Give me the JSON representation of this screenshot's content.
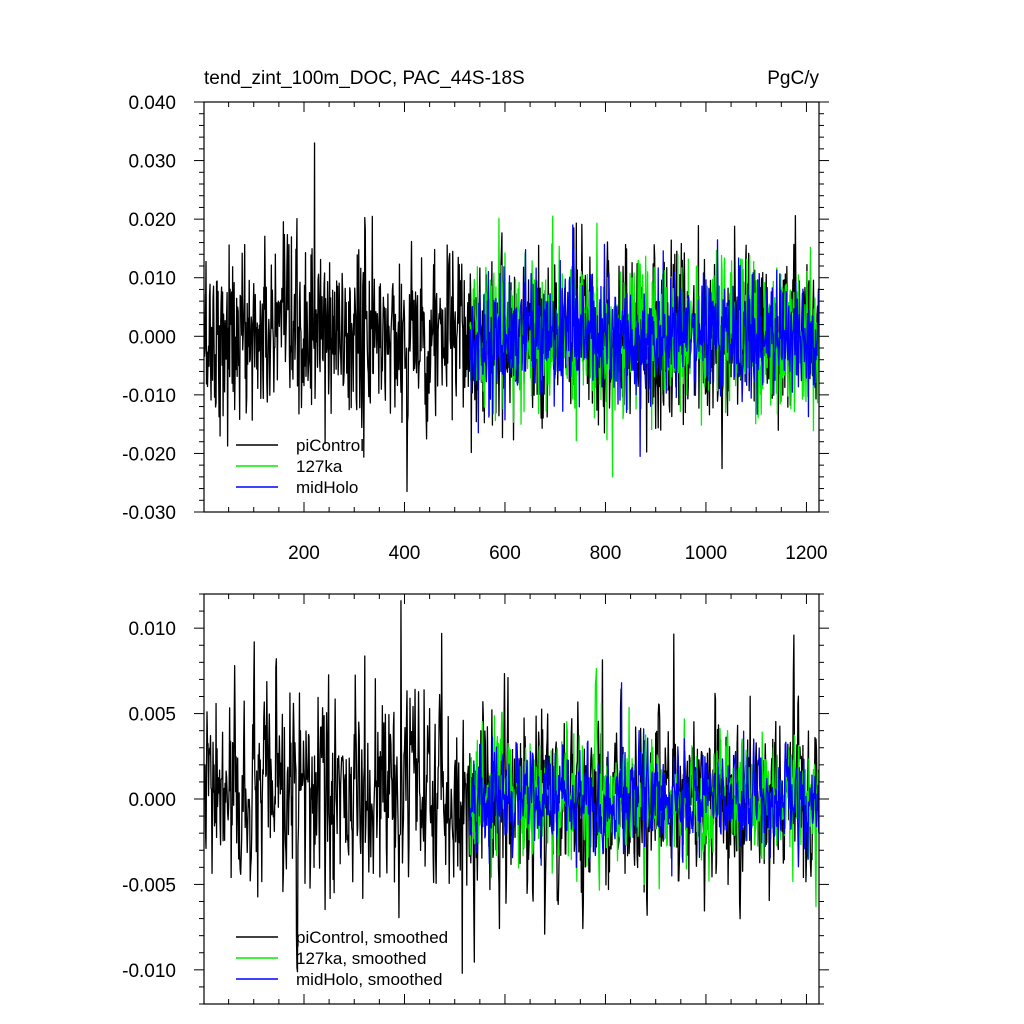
{
  "figure": {
    "title_left": "tend_zint_100m_DOC, PAC_44S-18S",
    "title_right": "PgC/y"
  },
  "chart_data": [
    {
      "type": "line",
      "panel": "top",
      "title": "tend_zint_100m_DOC, PAC_44S-18S",
      "units": "PgC/y",
      "xlim": [
        1,
        1225
      ],
      "ylim": [
        -0.03,
        0.04
      ],
      "xticks": [
        200,
        400,
        600,
        800,
        1000,
        1200
      ],
      "xtick_labels": [
        "200",
        "400",
        "600",
        "800",
        "1000",
        "1200"
      ],
      "yticks": [
        -0.03,
        -0.02,
        -0.01,
        0.0,
        0.01,
        0.02,
        0.03,
        0.04
      ],
      "ytick_labels": [
        "-0.030",
        "-0.020",
        "-0.010",
        "0.000",
        "0.010",
        "0.020",
        "0.030",
        "0.040"
      ],
      "legend_position": "bottom-left",
      "series": [
        {
          "name": "piControl",
          "color": "#000000",
          "x_range": [
            1,
            1225
          ],
          "amplitude": 0.0075,
          "extremes": {
            "max": 0.033,
            "min": -0.0265
          }
        },
        {
          "name": "127ka",
          "color": "#00ee00",
          "x_range": [
            530,
            1225
          ],
          "amplitude": 0.0065,
          "extremes": {
            "max": 0.0205,
            "min": -0.024
          }
        },
        {
          "name": "midHolo",
          "color": "#0000ff",
          "x_range": [
            530,
            1225
          ],
          "amplitude": 0.0055,
          "extremes": {
            "max": 0.019,
            "min": -0.0205
          }
        }
      ]
    },
    {
      "type": "line",
      "panel": "bottom",
      "xlim": [
        1,
        1225
      ],
      "ylim": [
        -0.012,
        0.012
      ],
      "xticks": [
        200,
        400,
        600,
        800,
        1000,
        1200
      ],
      "yticks": [
        -0.01,
        -0.005,
        0.0,
        0.005,
        0.01
      ],
      "ytick_labels": [
        "-0.010",
        "-0.005",
        "0.000",
        "0.005",
        "0.010"
      ],
      "legend_position": "bottom-left",
      "series": [
        {
          "name": "piControl, smoothed",
          "color": "#000000",
          "x_range": [
            1,
            1225
          ],
          "amplitude": 0.0028,
          "extremes": {
            "max": 0.0116,
            "min": -0.0102
          }
        },
        {
          "name": "127ka, smoothed",
          "color": "#00ee00",
          "x_range": [
            530,
            1225
          ],
          "amplitude": 0.0018,
          "extremes": {
            "max": 0.0056,
            "min": -0.005
          }
        },
        {
          "name": "midHolo, smoothed",
          "color": "#0000ff",
          "x_range": [
            530,
            1225
          ],
          "amplitude": 0.0015,
          "extremes": {
            "max": 0.0068,
            "min": -0.0045
          }
        }
      ]
    }
  ]
}
